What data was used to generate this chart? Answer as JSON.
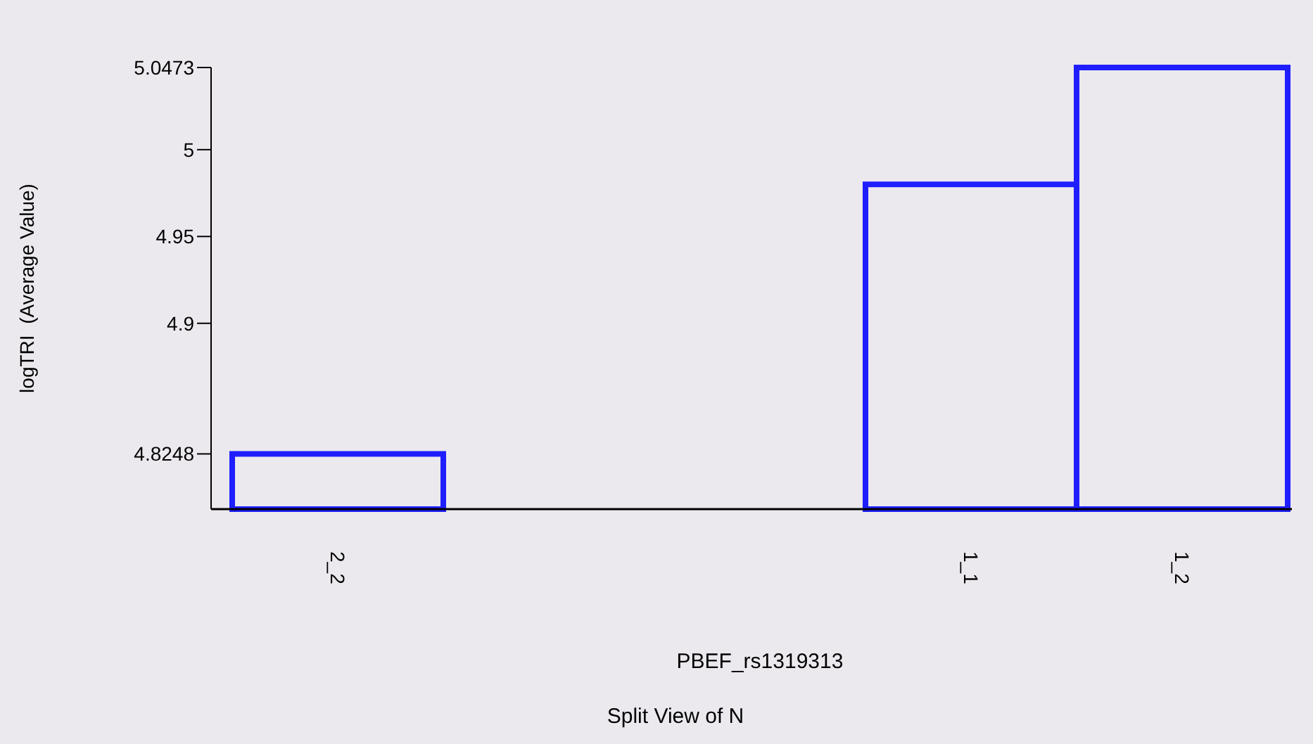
{
  "chart_data": {
    "type": "bar",
    "xlabel": "PBEF_rs1319313",
    "ylabel": "logTRI  (Average Value)",
    "annotations": [
      "Split View of N"
    ],
    "categories": [
      "2_2",
      null,
      null,
      "1_1",
      "1_2"
    ],
    "values": [
      4.8248,
      null,
      null,
      4.98,
      5.0473
    ],
    "color": "#1e1eff",
    "ylim": [
      4.793,
      5.0473
    ],
    "yticks": [
      4.8248,
      4.9,
      4.95,
      5,
      5.0473
    ],
    "grid": false
  }
}
